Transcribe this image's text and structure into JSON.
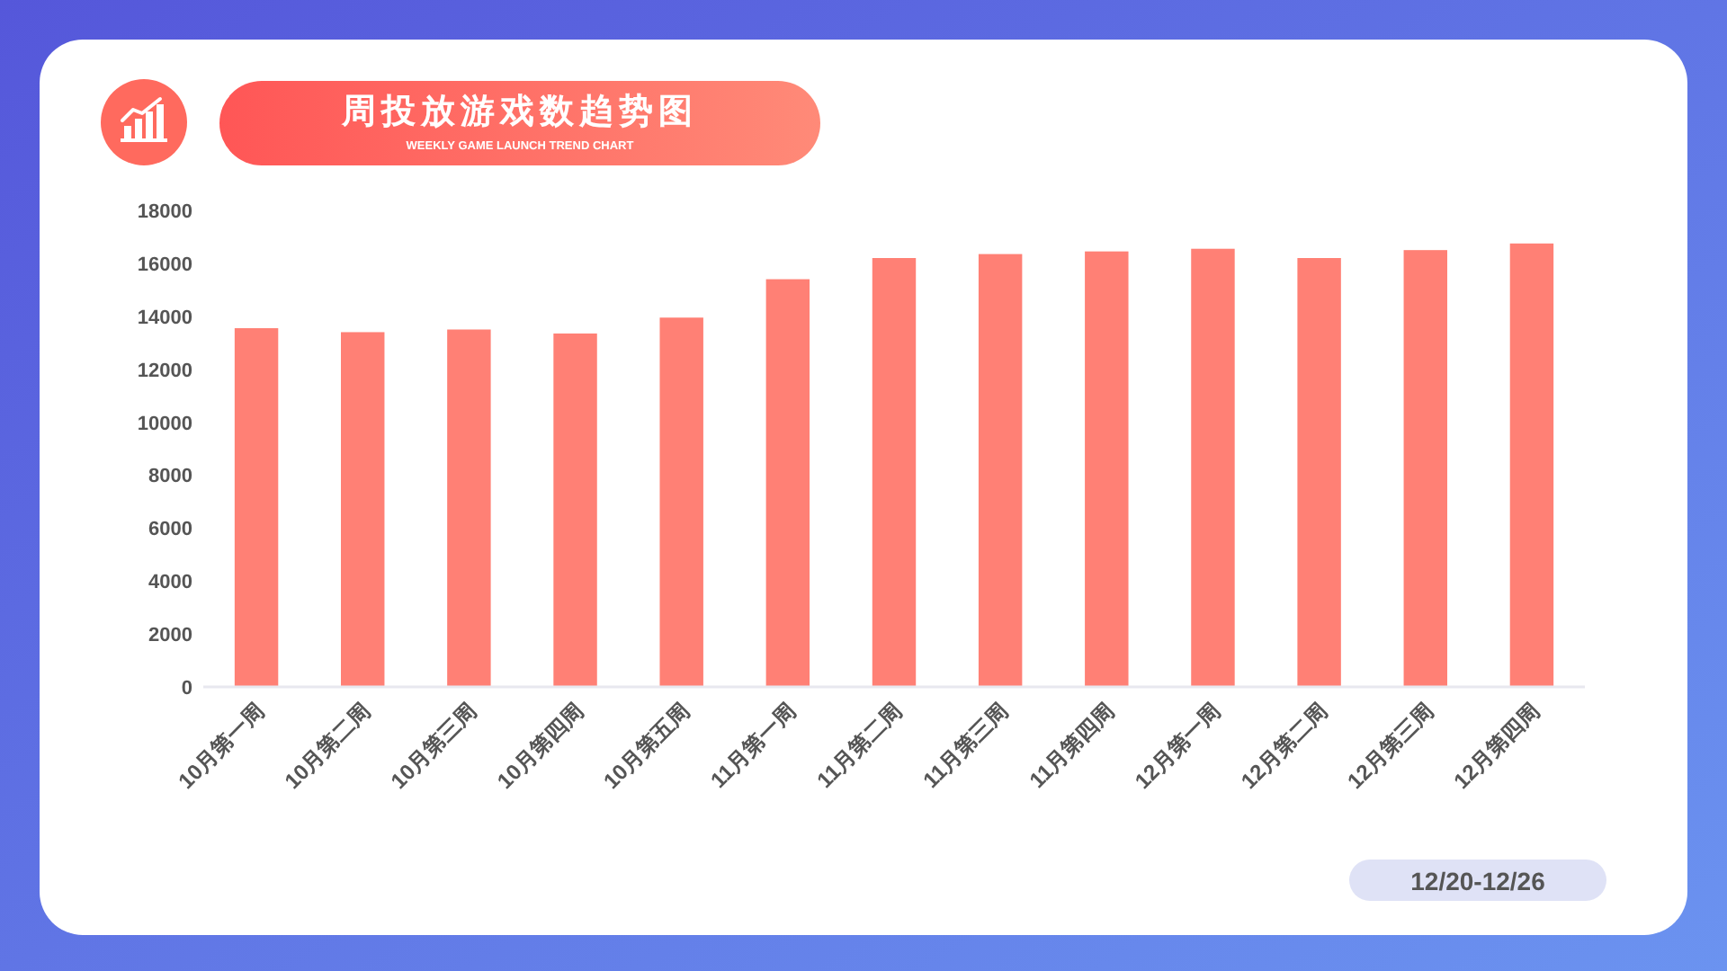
{
  "chart_data": {
    "type": "bar",
    "title": "周投放游戏数趋势图",
    "subtitle": "WEEKLY GAME LAUNCH TREND CHART",
    "categories": [
      "10月第一周",
      "10月第二周",
      "10月第三周",
      "10月第四周",
      "10月第五周",
      "11月第一周",
      "11月第二周",
      "11月第三周",
      "11月第四周",
      "12月第一周",
      "12月第二周",
      "12月第三周",
      "12月第四周"
    ],
    "values": [
      13550,
      13400,
      13500,
      13350,
      13950,
      15400,
      16200,
      16350,
      16450,
      16550,
      16200,
      16500,
      16750
    ],
    "color": "#ff8075",
    "ylim": [
      0,
      18000
    ],
    "yticks": [
      0,
      2000,
      4000,
      6000,
      8000,
      10000,
      12000,
      14000,
      16000,
      18000
    ],
    "annotations": [
      "12/20-12/26"
    ]
  }
}
